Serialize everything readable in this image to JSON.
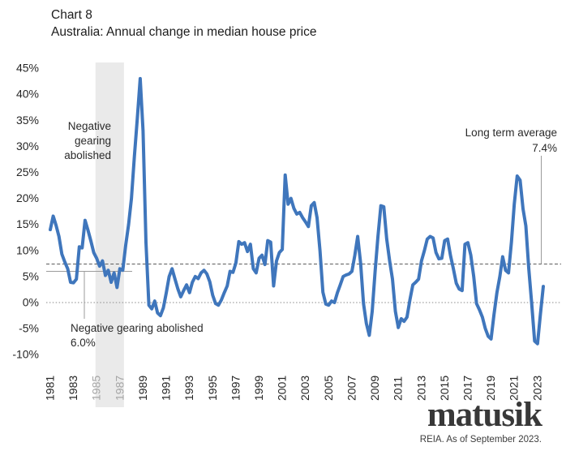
{
  "header": {
    "chart_label": "Chart 8",
    "title": "Australia: Annual change in median house price"
  },
  "chart_data": {
    "type": "line",
    "title": "Australia: Annual change in median house price",
    "unit": "percent",
    "x_start_year": 1981,
    "x_step_years": 0.25,
    "values": [
      14.0,
      16.6,
      14.8,
      12.7,
      9.3,
      7.8,
      6.5,
      3.9,
      3.8,
      4.5,
      10.7,
      10.5,
      15.8,
      13.9,
      11.8,
      9.6,
      8.5,
      7.0,
      8.0,
      5.2,
      6.2,
      3.9,
      5.7,
      2.9,
      6.5,
      6.2,
      11.0,
      15.0,
      20.0,
      28.0,
      35.3,
      43.0,
      33.0,
      11.6,
      -0.5,
      -1.2,
      0.3,
      -2.0,
      -2.5,
      -1.0,
      1.9,
      5.0,
      6.5,
      4.5,
      2.6,
      1.1,
      2.3,
      3.4,
      1.9,
      3.9,
      5.0,
      4.6,
      5.7,
      6.2,
      5.5,
      4.0,
      1.4,
      -0.2,
      -0.5,
      0.5,
      1.9,
      3.2,
      6.0,
      5.8,
      7.6,
      11.7,
      11.2,
      11.5,
      9.8,
      11.2,
      6.5,
      5.7,
      8.5,
      9.1,
      7.3,
      11.9,
      11.6,
      3.2,
      8.0,
      9.6,
      10.2,
      24.5,
      18.9,
      20.0,
      18.1,
      17.0,
      17.3,
      16.3,
      15.5,
      14.6,
      18.6,
      19.2,
      16.3,
      10.0,
      2.0,
      -0.3,
      -0.5,
      0.3,
      0.0,
      1.9,
      3.4,
      5.0,
      5.3,
      5.5,
      6.0,
      9.0,
      12.7,
      7.6,
      -0.2,
      -4.0,
      -6.3,
      -1.7,
      6.0,
      12.7,
      18.6,
      18.4,
      12.2,
      8.0,
      4.5,
      -1.7,
      -4.8,
      -3.1,
      -3.6,
      -2.8,
      0.5,
      3.4,
      3.9,
      4.5,
      8.0,
      10.0,
      12.2,
      12.7,
      12.4,
      9.6,
      8.4,
      8.5,
      11.9,
      12.2,
      9.0,
      6.5,
      3.7,
      2.6,
      2.3,
      11.2,
      11.5,
      9.1,
      5.0,
      -0.2,
      -1.4,
      -2.8,
      -5.0,
      -6.5,
      -7.0,
      -2.3,
      1.9,
      5.0,
      8.8,
      6.2,
      5.7,
      11.6,
      18.9,
      24.3,
      23.5,
      18.0,
      14.7,
      6.5,
      -0.2,
      -7.4,
      -7.9,
      -2.3,
      3.1
    ],
    "x_tick_years": [
      1981,
      1983,
      1985,
      1987,
      1989,
      1991,
      1993,
      1995,
      1997,
      1999,
      2001,
      2003,
      2005,
      2007,
      2009,
      2011,
      2013,
      2015,
      2017,
      2019,
      2021,
      2023
    ],
    "muted_x_ticks": [
      1985,
      1987
    ],
    "y_ticks": [
      45,
      40,
      35,
      30,
      25,
      20,
      15,
      10,
      5,
      0,
      -5,
      -10
    ],
    "y_tick_suffix": "%",
    "ylim": [
      -10,
      45
    ],
    "grid_zero_value": 0,
    "line_color": "#3F76BC",
    "band": {
      "from_year": 1984.9,
      "to_year": 1987.35,
      "color": "#EAEAEA",
      "label_lines": [
        "Negative",
        "gearing",
        "abolished"
      ]
    },
    "long_term_average": {
      "value": 7.4,
      "label": "Long term average",
      "value_label": "7.4%"
    },
    "abolition_callout": {
      "value": 6.0,
      "label": "Negative gearing abolished",
      "value_label": "6.0%"
    }
  },
  "footer": {
    "brand": "matusik",
    "source": "REIA.  As of September 2023."
  }
}
